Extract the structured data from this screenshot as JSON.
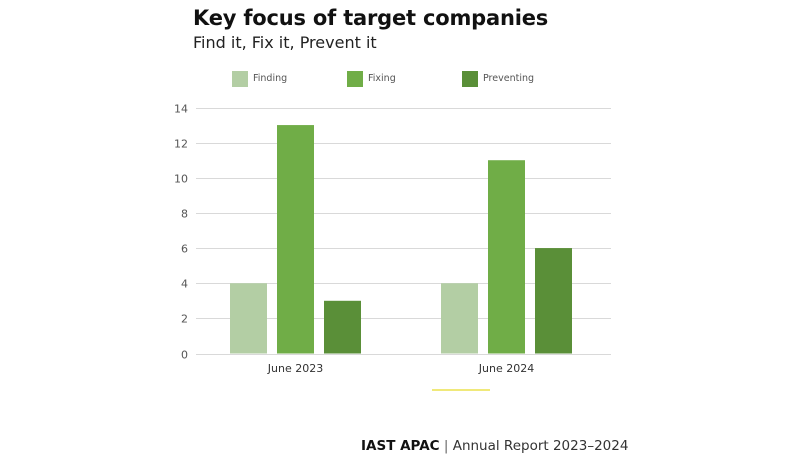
{
  "chart_data": {
    "type": "bar",
    "title": "Key focus of target companies",
    "subtitle": "Find it, Fix it, Prevent it",
    "categories": [
      "June 2023",
      "June 2024"
    ],
    "series": [
      {
        "name": "Finding",
        "values": [
          4,
          4
        ],
        "color": "#b3cea4"
      },
      {
        "name": "Fixing",
        "values": [
          13,
          11
        ],
        "color": "#70ad47"
      },
      {
        "name": "Preventing",
        "values": [
          3,
          6
        ],
        "color": "#5a8f38"
      }
    ],
    "xlabel": "",
    "ylabel": "",
    "ylim": [
      0,
      14
    ],
    "yticks": [
      0,
      2,
      4,
      6,
      8,
      10,
      12,
      14
    ],
    "grid": true,
    "legend_position": "top"
  },
  "footer": {
    "brand": "IAST APAC",
    "separator": " | ",
    "text": "Annual Report 2023–2024"
  },
  "colors": {
    "accent_line": "#f0e97a",
    "gridline": "#d9d9d9"
  }
}
